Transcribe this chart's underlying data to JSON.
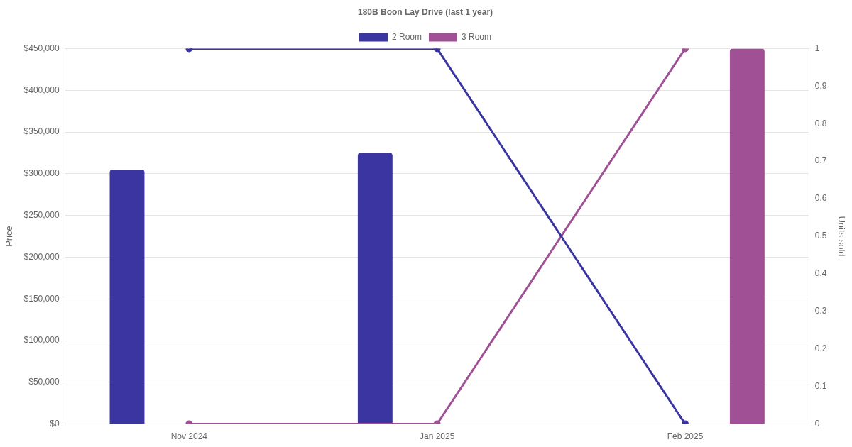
{
  "chart_data": {
    "type": "bar",
    "title": "180B Boon Lay Drive (last 1 year)",
    "categories": [
      "Nov 2024",
      "Jan 2025",
      "Feb 2025"
    ],
    "ylabel": "Price",
    "y2label": "Units sold",
    "series": [
      {
        "name": "2 Room",
        "color": "#3a35a0",
        "values": [
          305000,
          325000,
          null
        ]
      },
      {
        "name": "3 Room",
        "color": "#a05095",
        "values": [
          null,
          null,
          450000
        ]
      },
      {
        "type": "line",
        "axis": "y2",
        "color": "#3a35a0",
        "values": [
          1,
          1,
          0
        ]
      },
      {
        "type": "line",
        "axis": "y2",
        "color": "#a05095",
        "values": [
          0,
          0,
          1
        ]
      }
    ],
    "ylim": [
      0,
      450000
    ],
    "yticks": [
      {
        "value": 0,
        "label": "$0"
      },
      {
        "value": 50000,
        "label": "$50,000"
      },
      {
        "value": 100000,
        "label": "$100,000"
      },
      {
        "value": 150000,
        "label": "$150,000"
      },
      {
        "value": 200000,
        "label": "$200,000"
      },
      {
        "value": 250000,
        "label": "$250,000"
      },
      {
        "value": 300000,
        "label": "$300,000"
      },
      {
        "value": 350000,
        "label": "$350,000"
      },
      {
        "value": 400000,
        "label": "$400,000"
      },
      {
        "value": 450000,
        "label": "$450,000"
      }
    ],
    "y2lim": [
      0,
      1
    ],
    "y2ticks": [
      0,
      0.1,
      0.2,
      0.3,
      0.4,
      0.5,
      0.6,
      0.7,
      0.8,
      0.9,
      1
    ],
    "grid": "y",
    "legend": "top",
    "marker": "circle"
  }
}
